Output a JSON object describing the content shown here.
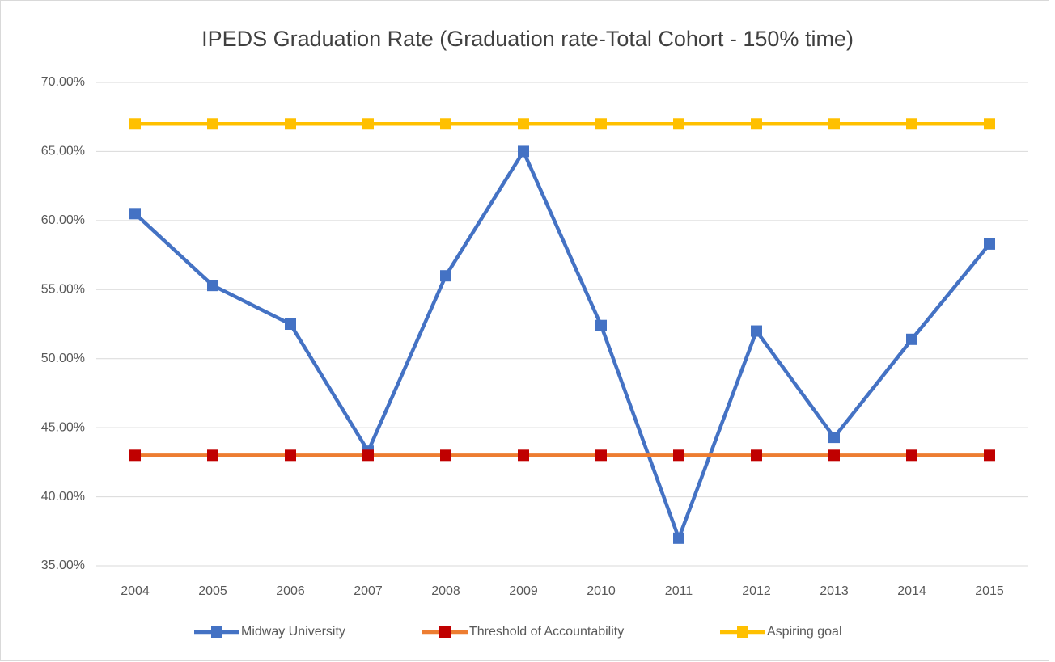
{
  "chart_data": {
    "type": "line",
    "title": "IPEDS Graduation Rate (Graduation rate-Total Cohort - 150% time)",
    "categories": [
      "2004",
      "2005",
      "2006",
      "2007",
      "2008",
      "2009",
      "2010",
      "2011",
      "2012",
      "2013",
      "2014",
      "2015"
    ],
    "series": [
      {
        "name": "Midway University",
        "color": "#4472c4",
        "marker_color": "#4472c4",
        "values": [
          60.5,
          55.3,
          52.5,
          43.3,
          56.0,
          65.0,
          52.4,
          37.0,
          52.0,
          44.3,
          51.4,
          58.3
        ]
      },
      {
        "name": "Threshold of Accountability",
        "color": "#ed7d31",
        "marker_color": "#c00000",
        "values": [
          43,
          43,
          43,
          43,
          43,
          43,
          43,
          43,
          43,
          43,
          43,
          43
        ]
      },
      {
        "name": "Aspiring goal",
        "color": "#ffc000",
        "marker_color": "#ffc000",
        "values": [
          67,
          67,
          67,
          67,
          67,
          67,
          67,
          67,
          67,
          67,
          67,
          67
        ]
      }
    ],
    "ylim": [
      35,
      70
    ],
    "yticks": [
      {
        "value": 35,
        "label": "35.00%"
      },
      {
        "value": 40,
        "label": "40.00%"
      },
      {
        "value": 45,
        "label": "45.00%"
      },
      {
        "value": 50,
        "label": "50.00%"
      },
      {
        "value": 55,
        "label": "55.00%"
      },
      {
        "value": 60,
        "label": "60.00%"
      },
      {
        "value": 65,
        "label": "65.00%"
      },
      {
        "value": 70,
        "label": "70.00%"
      }
    ],
    "grid": true,
    "legend": "bottom"
  }
}
